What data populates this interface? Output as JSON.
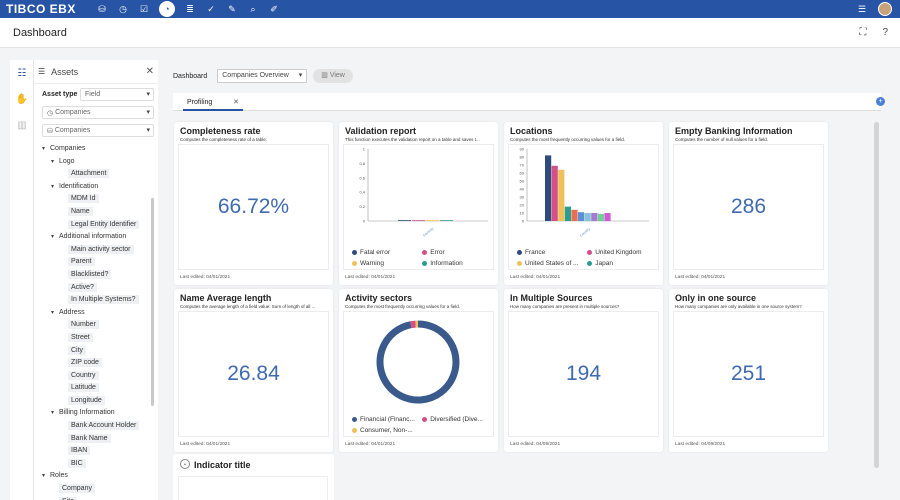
{
  "app": {
    "logo": "TIBCO EBX",
    "top_icons": [
      "database-icon",
      "clock-icon",
      "check-icon",
      "dashboard-icon",
      "stack-icon",
      "task-icon",
      "wrench-icon",
      "search-icon",
      "tool-icon"
    ]
  },
  "header": {
    "title": "Dashboard"
  },
  "assets": {
    "title": "Assets",
    "asset_type_label": "Asset type",
    "asset_type_value": "Field",
    "filter_1": "Companies",
    "filter_2": "Companies",
    "tree": [
      {
        "label": "Companies",
        "level": 0,
        "caret": true
      },
      {
        "label": "Logo",
        "level": 1,
        "caret": true
      },
      {
        "label": "Attachment",
        "level": 2,
        "caret": false
      },
      {
        "label": "Identification",
        "level": 1,
        "caret": true
      },
      {
        "label": "MDM Id",
        "level": 2,
        "caret": false
      },
      {
        "label": "Name",
        "level": 2,
        "caret": false
      },
      {
        "label": "Legal Entity Identifier",
        "level": 2,
        "caret": false
      },
      {
        "label": "Additional information",
        "level": 1,
        "caret": true
      },
      {
        "label": "Main activity sector",
        "level": 2,
        "caret": false
      },
      {
        "label": "Parent",
        "level": 2,
        "caret": false
      },
      {
        "label": "Blacklisted?",
        "level": 2,
        "caret": false
      },
      {
        "label": "Active?",
        "level": 2,
        "caret": false
      },
      {
        "label": "In Multiple Systems?",
        "level": 2,
        "caret": false
      },
      {
        "label": "Address",
        "level": 1,
        "caret": true
      },
      {
        "label": "Number",
        "level": 2,
        "caret": false
      },
      {
        "label": "Street",
        "level": 2,
        "caret": false
      },
      {
        "label": "City",
        "level": 2,
        "caret": false
      },
      {
        "label": "ZIP code",
        "level": 2,
        "caret": false
      },
      {
        "label": "Country",
        "level": 2,
        "caret": false
      },
      {
        "label": "Latitude",
        "level": 2,
        "caret": false
      },
      {
        "label": "Longitude",
        "level": 2,
        "caret": false
      },
      {
        "label": "Billing Information",
        "level": 1,
        "caret": true
      },
      {
        "label": "Bank Account Holder",
        "level": 2,
        "caret": false
      },
      {
        "label": "Bank Name",
        "level": 2,
        "caret": false
      },
      {
        "label": "IBAN",
        "level": 2,
        "caret": false
      },
      {
        "label": "BIC",
        "level": 2,
        "caret": false
      },
      {
        "label": "Roles",
        "level": 0,
        "caret": true
      },
      {
        "label": "Company",
        "level": 1,
        "caret": false
      },
      {
        "label": "Site",
        "level": 1,
        "caret": false
      }
    ]
  },
  "dashboard": {
    "label": "Dashboard",
    "selected": "Companies Overview",
    "view_label": "View",
    "tab": "Profiling"
  },
  "cards": [
    {
      "title": "Completeness rate",
      "desc": "Computes the completeness rate of a table.",
      "value": "66.72%",
      "footer": "Last edited: 04/01/2021"
    },
    {
      "title": "Validation report",
      "desc": "This function executes the validation report on a table and saves t...",
      "footer": "Last edited: 04/01/2021",
      "legend": [
        "Fatal error",
        "Error",
        "Warning",
        "Information"
      ],
      "axis_label": "Severity"
    },
    {
      "title": "Locations",
      "desc": "Computes the most frequently occurring values for a field.",
      "footer": "Last edited: 04/01/2021",
      "legend": [
        "France",
        "United Kingdom",
        "United States of ...",
        "Japan"
      ],
      "axis_label": "Country"
    },
    {
      "title": "Empty Banking Information",
      "desc": "Computes the number of null values for a field.",
      "value": "286",
      "footer": "Last edited: 04/01/2021"
    },
    {
      "title": "Name Average length",
      "desc": "Computes the average length of a field value: Sum of length of all ...",
      "value": "26.84",
      "footer": "Last edited: 04/01/2021"
    },
    {
      "title": "Activity sectors",
      "desc": "Computes the most frequently occurring values for a field.",
      "footer": "Last edited: 04/01/2021",
      "legend": [
        "Financial (Financ...",
        "Diversified (Dive...",
        "Consumer, Non-..."
      ]
    },
    {
      "title": "In Multiple Sources",
      "desc": "How many companies are present in multiple sources?",
      "value": "194",
      "footer": "Last edited: 04/09/2021"
    },
    {
      "title": "Only in one source",
      "desc": "How many companies are only available in one source system?",
      "value": "251",
      "footer": "Last edited: 04/09/2021"
    }
  ],
  "indicator": {
    "title": "Indicator title"
  },
  "chart_data": [
    {
      "type": "bar",
      "chart": "Locations",
      "ylim": [
        0,
        90
      ],
      "yticks": [
        "90",
        "80",
        "70",
        "60",
        "50",
        "40",
        "30",
        "20",
        "10",
        "0"
      ],
      "values": [
        82,
        69,
        64,
        18,
        14,
        11,
        10,
        10,
        9,
        10
      ],
      "colors": [
        "#2f4b7c",
        "#d45087",
        "#f0c05a",
        "#2a9d8f",
        "#e76f51",
        "#5b8fd6",
        "#89c2d9",
        "#a47bd0",
        "#6fcf97",
        "#d05ad6"
      ]
    },
    {
      "type": "pie",
      "chart": "Activity sectors",
      "values": [
        97,
        2,
        1
      ],
      "colors": [
        "#3a5a8c",
        "#d45087",
        "#f0c05a"
      ]
    },
    {
      "type": "bar",
      "chart": "Validation report",
      "ylim": [
        0,
        1
      ],
      "yticks": [
        "1",
        "0.8",
        "0.6",
        "0.4",
        "0.2",
        "0"
      ],
      "values": [
        0.01,
        0.01,
        0.01,
        0.01
      ],
      "colors": [
        "#2f4b7c",
        "#d45087",
        "#f0c05a",
        "#2a9d8f"
      ]
    }
  ]
}
